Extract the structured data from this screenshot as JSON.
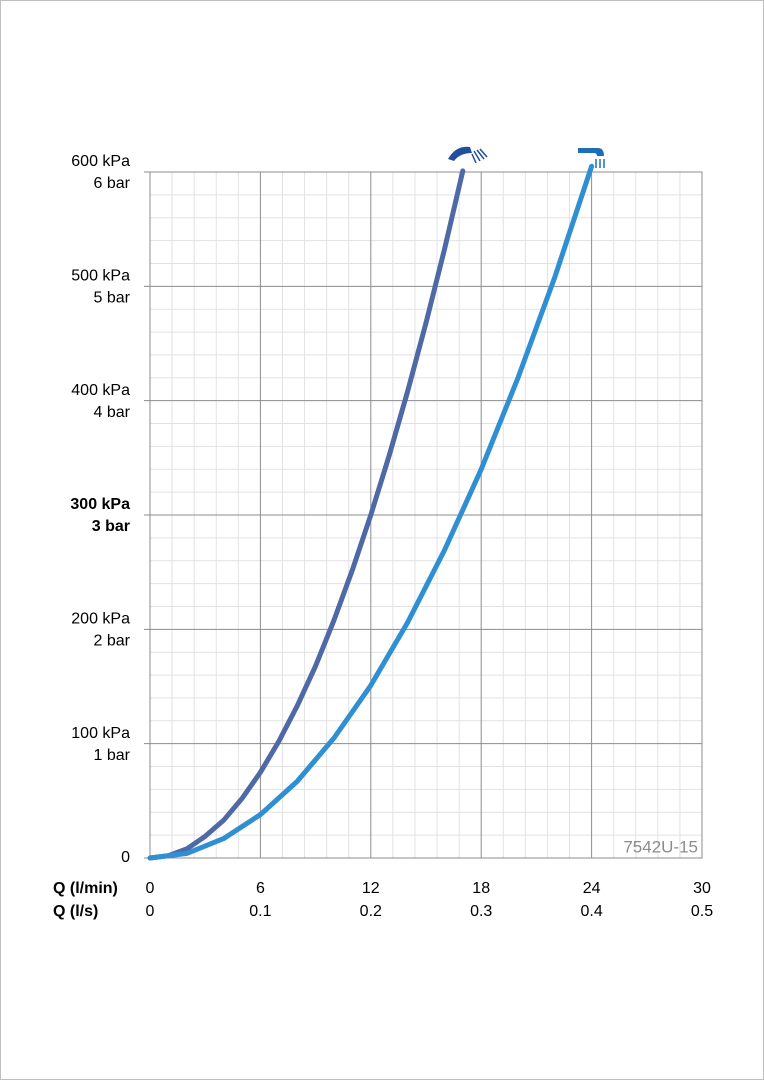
{
  "chart_data": {
    "type": "line",
    "xlabel": "Q (l/min)",
    "xlim": [
      0,
      30
    ],
    "xticks": [
      0,
      6,
      12,
      18,
      24,
      30
    ],
    "x2label": "Q (l/s)",
    "x2lim": [
      0,
      0.5
    ],
    "x2ticks": [
      0,
      0.1,
      0.2,
      0.3,
      0.4,
      0.5
    ],
    "ylim": [
      0,
      600
    ],
    "yticks": [
      0,
      {
        "value": 100,
        "label": "100 kPa"
      },
      {
        "value": 200,
        "label": "200 kPa"
      },
      {
        "value": 300,
        "label": "300 kPa"
      },
      {
        "value": 400,
        "label": "400 kPa"
      },
      {
        "value": 500,
        "label": "500 kPa"
      },
      {
        "value": 600,
        "label": "600 kPa"
      }
    ],
    "y2lim": [
      0,
      6
    ],
    "y2ticks": [
      {
        "value": 1,
        "label": "1 bar"
      },
      {
        "value": 2,
        "label": "2 bar"
      },
      {
        "value": 3,
        "label": "3 bar"
      },
      {
        "value": 4,
        "label": "4 bar"
      },
      {
        "value": 5,
        "label": "5 bar"
      },
      {
        "value": 6,
        "label": "6 bar"
      }
    ],
    "bold_ytick_value": 300,
    "grid": true,
    "minor_divisions": 5,
    "annotation": "7542U-15",
    "series": [
      {
        "color": "#4f68a6",
        "x": [
          0,
          1,
          2,
          3,
          4,
          5,
          6,
          7,
          8,
          9,
          10,
          11,
          12,
          13,
          14,
          15,
          16,
          17
        ],
        "values": [
          0,
          2,
          8,
          19,
          33,
          52,
          75,
          102,
          133,
          168,
          208,
          252,
          300,
          352,
          408,
          468,
          532,
          601
        ]
      },
      {
        "color": "#2f8fd2",
        "x": [
          0,
          2,
          4,
          6,
          8,
          10,
          12,
          14,
          16,
          18,
          20,
          22,
          24
        ],
        "values": [
          0,
          4,
          17,
          38,
          67,
          105,
          151,
          206,
          269,
          340,
          420,
          508,
          605
        ]
      }
    ]
  }
}
